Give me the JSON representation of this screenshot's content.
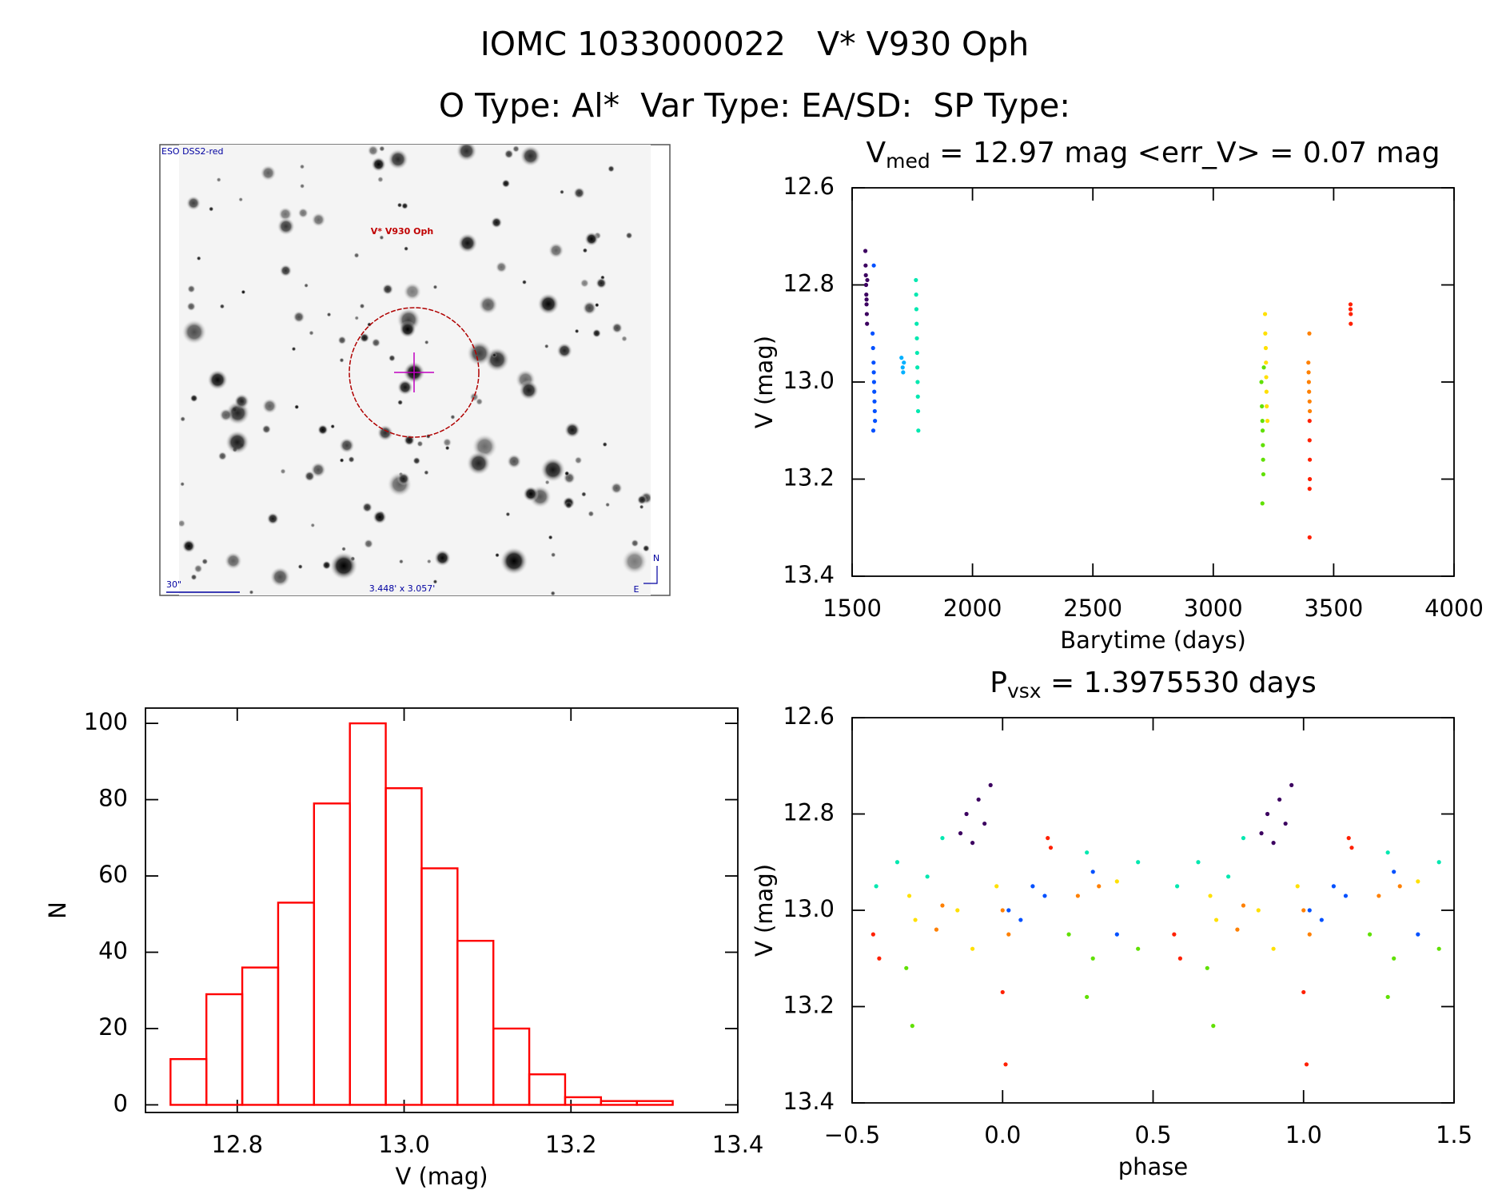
{
  "header": {
    "line1": "IOMC 1033000022   V* V930 Oph",
    "line2": "O Type: Al*  Var Type: EA/SD:  SP Type:"
  },
  "image": {
    "survey": "ESO DSS2-red",
    "target": "V* V930 Oph",
    "scale": "30\"",
    "size": "3.448' x 3.057'",
    "north": "N",
    "east": "E"
  },
  "chart_data": [
    {
      "type": "histogram",
      "xlabel": "V (mag)",
      "ylabel": "N",
      "bins": [
        12.72,
        12.763,
        12.806,
        12.849,
        12.892,
        12.935,
        12.978,
        13.021,
        13.064,
        13.107,
        13.15,
        13.193,
        13.236,
        13.279,
        13.322
      ],
      "values": [
        12,
        29,
        36,
        53,
        79,
        100,
        83,
        62,
        43,
        20,
        8,
        2,
        1,
        1
      ],
      "color": "#ff0000",
      "xlim": [
        12.69,
        13.4
      ],
      "xticks": [
        12.8,
        {
          "value": 13,
          "label": "13.0"
        },
        13.2,
        13.4
      ],
      "ylim": [
        -2,
        104
      ],
      "yticks": [
        0,
        20,
        40,
        60,
        80,
        100
      ]
    },
    {
      "type": "scatter",
      "title": {
        "text": "V",
        "sub": "med",
        "rest": " = 12.97 mag <err_V> = 0.07 mag"
      },
      "xlabel": "Barytime (days)",
      "ylabel": "V (mag)",
      "y_reversed": true,
      "xlim": [
        1500,
        4000
      ],
      "xticks": [
        1500,
        2000,
        2500,
        3000,
        3500,
        4000
      ],
      "ylim": [
        12.6,
        13.4
      ],
      "yticks": [
        12.6,
        12.8,
        {
          "value": 13,
          "label": "13.0"
        },
        13.2,
        13.4
      ],
      "series": [
        {
          "color": "#3c0060",
          "x": [
            1555,
            1556,
            1557,
            1558,
            1559,
            1560,
            1561,
            1562,
            1563,
            1560
          ],
          "values": [
            12.73,
            12.76,
            12.78,
            12.8,
            12.82,
            12.84,
            12.86,
            12.88,
            12.79,
            12.83
          ]
        },
        {
          "color": "#0050ff",
          "x": [
            1585,
            1587,
            1589,
            1590,
            1591,
            1592,
            1593,
            1594,
            1595,
            1588,
            1590
          ],
          "values": [
            12.9,
            12.93,
            12.96,
            12.98,
            13.0,
            13.02,
            13.04,
            13.06,
            13.08,
            13.1,
            12.76
          ]
        },
        {
          "color": "#00b0ff",
          "x": [
            1705,
            1710,
            1712,
            1715
          ],
          "values": [
            12.95,
            12.97,
            12.98,
            12.96
          ]
        },
        {
          "color": "#00e8b0",
          "x": [
            1765,
            1766,
            1767,
            1768,
            1769,
            1770,
            1771,
            1772,
            1773,
            1774,
            1775
          ],
          "values": [
            12.79,
            12.82,
            12.85,
            12.88,
            12.91,
            12.94,
            12.97,
            13.0,
            13.03,
            13.06,
            13.1
          ]
        },
        {
          "color": "#60e000",
          "x": [
            3200,
            3202,
            3204,
            3205,
            3206,
            3207,
            3208,
            3204,
            3210
          ],
          "values": [
            13.0,
            13.05,
            13.08,
            13.1,
            13.13,
            13.16,
            13.19,
            13.25,
            12.97
          ]
        },
        {
          "color": "#ffe000",
          "x": [
            3215,
            3216,
            3218,
            3219,
            3220,
            3221,
            3222,
            3225
          ],
          "values": [
            12.86,
            12.9,
            12.93,
            12.96,
            12.99,
            13.02,
            13.05,
            13.08
          ]
        },
        {
          "color": "#ff8000",
          "x": [
            3395,
            3396,
            3397,
            3398,
            3400,
            3401,
            3399
          ],
          "values": [
            12.96,
            12.98,
            13.0,
            13.02,
            13.04,
            13.06,
            12.9
          ]
        },
        {
          "color": "#ff2000",
          "x": [
            3400,
            3400,
            3401,
            3401,
            3400,
            3400,
            3570,
            3570,
            3571,
            3571
          ],
          "values": [
            13.08,
            13.12,
            13.16,
            13.2,
            13.22,
            13.32,
            12.84,
            12.85,
            12.86,
            12.88
          ]
        }
      ]
    },
    {
      "type": "scatter",
      "title": {
        "text": "P",
        "sub": "vsx",
        "rest": " = 1.3975530 days"
      },
      "xlabel": "phase",
      "ylabel": "V (mag)",
      "y_reversed": true,
      "xlim": [
        -0.5,
        1.5
      ],
      "xticks": [
        {
          "value": -0.5,
          "label": "−0.5"
        },
        {
          "value": 0,
          "label": "0.0"
        },
        0.5,
        {
          "value": 1,
          "label": "1.0"
        },
        1.5
      ],
      "ylim": [
        12.6,
        13.4
      ],
      "yticks": [
        12.6,
        12.8,
        {
          "value": 13,
          "label": "13.0"
        },
        13.2,
        13.4
      ],
      "series": [
        {
          "color": "#3c0060",
          "x": [
            -0.14,
            -0.12,
            -0.1,
            -0.08,
            -0.06,
            -0.04,
            0.86,
            0.88,
            0.9,
            0.92,
            0.94,
            0.96
          ],
          "values": [
            12.84,
            12.8,
            12.86,
            12.77,
            12.82,
            12.74,
            12.84,
            12.8,
            12.86,
            12.77,
            12.82,
            12.74
          ]
        },
        {
          "color": "#0050ff",
          "x": [
            0.02,
            0.06,
            0.1,
            0.14,
            0.3,
            0.38,
            1.02,
            1.06,
            1.1,
            1.14,
            1.3,
            1.38
          ],
          "values": [
            13.0,
            13.02,
            12.95,
            12.97,
            12.92,
            13.05,
            13.0,
            13.02,
            12.95,
            12.97,
            12.92,
            13.05
          ]
        },
        {
          "color": "#00e8b0",
          "x": [
            -0.42,
            -0.35,
            -0.25,
            -0.2,
            0.28,
            0.45,
            0.58,
            0.65,
            0.75,
            0.8,
            1.28,
            1.45
          ],
          "values": [
            12.95,
            12.9,
            12.93,
            12.85,
            12.88,
            12.9,
            12.95,
            12.9,
            12.93,
            12.85,
            12.88,
            12.9
          ]
        },
        {
          "color": "#60e000",
          "x": [
            -0.32,
            -0.3,
            0.22,
            0.28,
            0.3,
            0.45,
            0.68,
            0.7,
            1.22,
            1.28,
            1.3,
            1.45
          ],
          "values": [
            13.12,
            13.24,
            13.05,
            13.18,
            13.1,
            13.08,
            13.12,
            13.24,
            13.05,
            13.18,
            13.1,
            13.08
          ]
        },
        {
          "color": "#ffe000",
          "x": [
            -0.31,
            -0.29,
            -0.15,
            -0.1,
            -0.02,
            0.38,
            0.69,
            0.71,
            0.85,
            0.9,
            0.98,
            1.38
          ],
          "values": [
            12.97,
            13.02,
            13.0,
            13.08,
            12.95,
            12.94,
            12.97,
            13.02,
            13.0,
            13.08,
            12.95,
            12.94
          ]
        },
        {
          "color": "#ff8000",
          "x": [
            -0.22,
            -0.2,
            0.0,
            0.02,
            0.25,
            0.32,
            0.78,
            0.8,
            1.0,
            1.02,
            1.25,
            1.32
          ],
          "values": [
            13.04,
            12.99,
            13.0,
            13.05,
            12.97,
            12.95,
            13.04,
            12.99,
            13.0,
            13.05,
            12.97,
            12.95
          ]
        },
        {
          "color": "#ff2000",
          "x": [
            -0.43,
            -0.41,
            0.0,
            0.01,
            0.15,
            0.16,
            0.57,
            0.59,
            1.0,
            1.01,
            1.15,
            1.16
          ],
          "values": [
            13.05,
            13.1,
            13.17,
            13.32,
            12.85,
            12.87,
            13.05,
            13.1,
            13.17,
            13.32,
            12.85,
            12.87
          ]
        }
      ]
    }
  ]
}
